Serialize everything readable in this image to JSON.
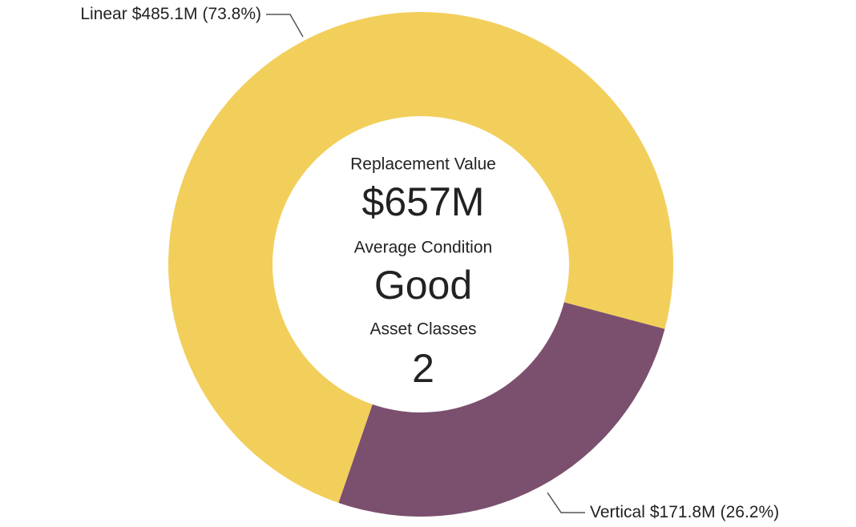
{
  "chart_data": {
    "type": "donut",
    "categories": [
      "Linear",
      "Vertical"
    ],
    "values": [
      485.1,
      171.8
    ],
    "value_labels": [
      "$485.1M",
      "$171.8M"
    ],
    "percent_labels": [
      "(73.8%)",
      "(26.2%)"
    ],
    "colors": [
      "#f2cf5b",
      "#7b4f6e"
    ],
    "center": [
      {
        "label": "Replacement Value",
        "value": "$657M"
      },
      {
        "label": "Average Condition",
        "value": "Good"
      },
      {
        "label": "Asset Classes",
        "value": "2"
      }
    ]
  }
}
